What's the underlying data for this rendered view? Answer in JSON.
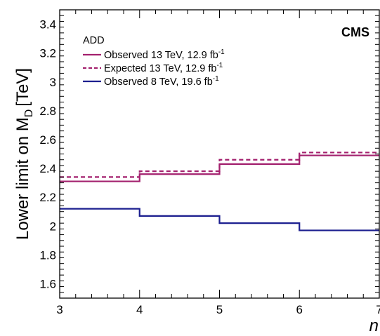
{
  "chart_data": {
    "type": "line",
    "step": true,
    "x_edges": [
      3,
      4,
      5,
      6,
      7
    ],
    "xlim": [
      3,
      7
    ],
    "ylim": [
      1.5,
      3.5
    ],
    "xlabel": "n",
    "ylabel_main": "Lower limit on M",
    "ylabel_sub": "D",
    "ylabel_unit": "[TeV]",
    "x_ticks": [
      3,
      4,
      5,
      6,
      7
    ],
    "y_ticks": [
      1.6,
      1.8,
      2,
      2.2,
      2.4,
      2.6,
      2.8,
      3,
      3.2,
      3.4
    ],
    "experiment_label": "CMS",
    "legend_header": "ADD",
    "legend_position": "top-left",
    "grid": false,
    "series": [
      {
        "name": "Observed 13 TeV, 12.9 fb",
        "superscript": "-1",
        "values": [
          2.31,
          2.36,
          2.43,
          2.49
        ],
        "color": "#a3206e",
        "dashed": false
      },
      {
        "name": "Expected 13 TeV, 12.9 fb",
        "superscript": "-1",
        "values": [
          2.34,
          2.38,
          2.46,
          2.51
        ],
        "color": "#a3206e",
        "dashed": true
      },
      {
        "name": "Observed 8 TeV, 19.6 fb",
        "superscript": "-1",
        "values": [
          2.12,
          2.07,
          2.02,
          1.97
        ],
        "color": "#1c1f8f",
        "dashed": false
      }
    ]
  }
}
